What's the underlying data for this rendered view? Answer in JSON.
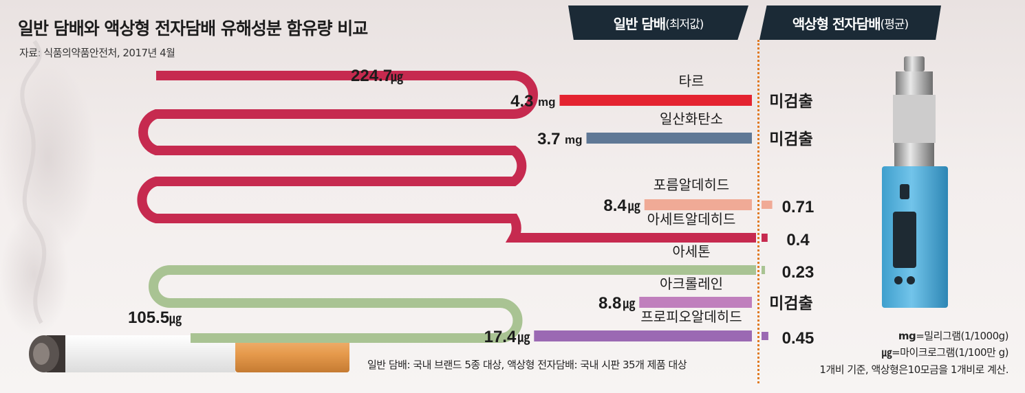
{
  "title": "일반 담배와 액상형 전자담배 유해성분 함유량 비교",
  "source": "자료: 식품의약품안전처, 2017년 4월",
  "headers": {
    "left_main": "일반 담배",
    "left_sub": "(최저값)",
    "right_main": "액상형 전자담배",
    "right_sub": "(평균)"
  },
  "chart_data": {
    "type": "bar",
    "categories": [
      "타르",
      "일산화탄소",
      "포름알데히드",
      "아세트알데히드",
      "아세톤",
      "아크롤레인",
      "프로피오알데히드"
    ],
    "series": [
      {
        "name": "일반 담배",
        "values": [
          4.3,
          3.7,
          8.4,
          224.7,
          105.5,
          8.8,
          17.4
        ],
        "labels": [
          "4.3mg",
          "3.7mg",
          "8.4㎍",
          "224.7㎍",
          "105.5㎍",
          "8.8㎍",
          "17.4㎍"
        ]
      },
      {
        "name": "액상형 전자담배",
        "values": [
          null,
          null,
          0.71,
          0.4,
          0.23,
          null,
          0.45
        ],
        "labels": [
          "미검출",
          "미검출",
          "0.71",
          "0.4",
          "0.23",
          "미검출",
          "0.45"
        ]
      }
    ],
    "units": [
      "mg",
      "mg",
      "㎍",
      "㎍",
      "㎍",
      "㎍",
      "㎍"
    ],
    "colors": [
      "#e42330",
      "#5f7895",
      "#f0aa96",
      "#c62a4f",
      "#a9c393",
      "#c07fbd",
      "#9b69b3"
    ]
  },
  "notes": {
    "basis": "일반 담배: 국내 브랜드 5종 대상, 액상형 전자담배: 국내 시판 35개 제품 대상",
    "unit_mg_key": "mg",
    "unit_mg_def": "=밀리그램(1/1000g)",
    "unit_ug_key": "㎍",
    "unit_ug_def": "=마이크로그램(1/100만 g)",
    "puff": "1개비 기준, 액상형은10모금을 1개비로 계산."
  }
}
